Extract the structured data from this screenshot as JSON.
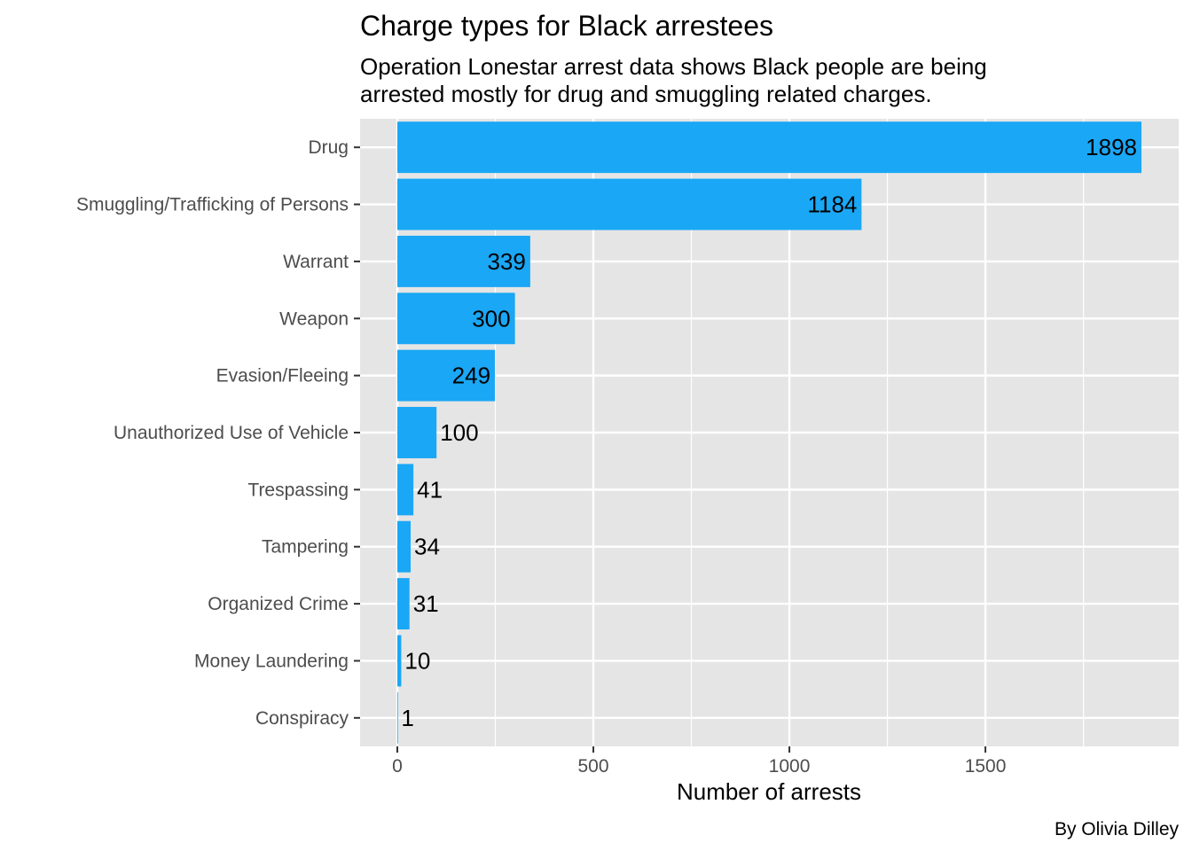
{
  "chart_data": {
    "type": "bar",
    "orientation": "horizontal",
    "title": "Charge types for Black arrestees",
    "subtitle_lines": [
      "Operation Lonestar arrest data shows Black people are being",
      "arrested mostly for drug and smuggling related charges."
    ],
    "xlabel": "Number of arrests",
    "ylabel": "",
    "caption": "By Olivia Dilley",
    "categories": [
      "Drug",
      "Smuggling/Trafficking of Persons",
      "Warrant",
      "Weapon",
      "Evasion/Fleeing",
      "Unauthorized Use of Vehicle",
      "Trespassing",
      "Tampering",
      "Organized Crime",
      "Money Laundering",
      "Conspiracy"
    ],
    "values": [
      1898,
      1184,
      339,
      300,
      249,
      100,
      41,
      34,
      31,
      10,
      1
    ],
    "x_ticks": [
      0,
      500,
      1000,
      1500
    ],
    "x_tick_labels": [
      "0",
      "500",
      "1000",
      "1500"
    ],
    "xlim": [
      -95,
      1993
    ],
    "grid": true,
    "legend": "none",
    "colors": {
      "bar": "#1aa7f5",
      "panel_background": "#e5e5e5",
      "grid_line": "#ffffff",
      "axis_text": "#4d4d4d",
      "tick": "#333333"
    }
  }
}
